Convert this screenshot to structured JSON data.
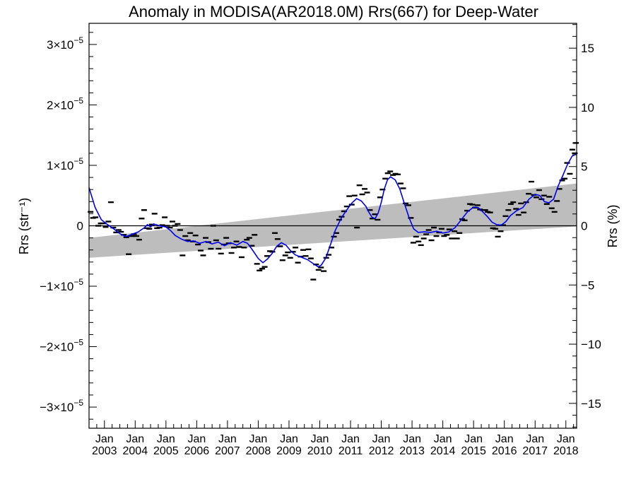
{
  "chart_data": {
    "type": "scatter",
    "title": "Anomaly in MODISA(AR2018.0M) Rrs(667) for Deep-Water",
    "ylabel_left": "Rrs (str⁻¹)",
    "ylabel_right": "Rrs (%)",
    "x_range": [
      2002.5,
      2018.35
    ],
    "y_range": [
      -3.35e-05,
      3.35e-05
    ],
    "y_right_range": [
      -17.1,
      17.1
    ],
    "y_left_ticks": [
      {
        "value": 3e-05,
        "mantissa": "3",
        "exp": "−5"
      },
      {
        "value": 2e-05,
        "mantissa": "2",
        "exp": "−5"
      },
      {
        "value": 1e-05,
        "mantissa": "1",
        "exp": "−5"
      },
      {
        "value": 0,
        "plain": "0"
      },
      {
        "value": -1e-05,
        "mantissa": "−1",
        "exp": "−5"
      },
      {
        "value": -2e-05,
        "mantissa": "−2",
        "exp": "−5"
      },
      {
        "value": -3e-05,
        "mantissa": "−3",
        "exp": "−5"
      }
    ],
    "y_right_ticks": [
      {
        "value": 15,
        "label": "15"
      },
      {
        "value": 10,
        "label": "10"
      },
      {
        "value": 5,
        "label": "5"
      },
      {
        "value": 0,
        "label": "0"
      },
      {
        "value": -5,
        "label": "−5"
      },
      {
        "value": -10,
        "label": "−10"
      },
      {
        "value": -15,
        "label": "−15"
      }
    ],
    "x_ticks": [
      {
        "value": 2003.0,
        "month": "Jan",
        "year": "2003"
      },
      {
        "value": 2004.0,
        "month": "Jan",
        "year": "2004"
      },
      {
        "value": 2005.0,
        "month": "Jan",
        "year": "2005"
      },
      {
        "value": 2006.0,
        "month": "Jan",
        "year": "2006"
      },
      {
        "value": 2007.0,
        "month": "Jan",
        "year": "2007"
      },
      {
        "value": 2008.0,
        "month": "Jan",
        "year": "2008"
      },
      {
        "value": 2009.0,
        "month": "Jan",
        "year": "2009"
      },
      {
        "value": 2010.0,
        "month": "Jan",
        "year": "2010"
      },
      {
        "value": 2011.0,
        "month": "Jan",
        "year": "2011"
      },
      {
        "value": 2012.0,
        "month": "Jan",
        "year": "2012"
      },
      {
        "value": 2013.0,
        "month": "Jan",
        "year": "2013"
      },
      {
        "value": 2014.0,
        "month": "Jan",
        "year": "2014"
      },
      {
        "value": 2015.0,
        "month": "Jan",
        "year": "2015"
      },
      {
        "value": 2016.0,
        "month": "Jan",
        "year": "2016"
      },
      {
        "value": 2017.0,
        "month": "Jan",
        "year": "2017"
      },
      {
        "value": 2018.0,
        "month": "Jan",
        "year": "2018"
      }
    ],
    "trend_band": {
      "start_x": 2002.5,
      "end_x": 2018.35,
      "upper_start": -2e-06,
      "upper_end": 7e-06,
      "lower_start": -5.3e-06,
      "lower_end": -1e-07
    },
    "zero_line": 0,
    "colors": {
      "smooth_line": "#0000ee",
      "band": "#bdbdbd",
      "points": "#000000",
      "axis": "#000000"
    },
    "smoothed": [
      [
        2002.5,
        6.3e-06
      ],
      [
        2002.7,
        3e-06
      ],
      [
        2002.9,
        1e-06
      ],
      [
        2003.1,
        2e-07
      ],
      [
        2003.3,
        -5e-07
      ],
      [
        2003.5,
        -1.3e-06
      ],
      [
        2003.7,
        -1.8e-06
      ],
      [
        2003.9,
        -1.4e-06
      ],
      [
        2004.1,
        -1e-06
      ],
      [
        2004.3,
        -3e-07
      ],
      [
        2004.4,
        2e-07
      ],
      [
        2004.5,
        -2e-07
      ],
      [
        2004.6,
        3e-07
      ],
      [
        2004.8,
        0.0
      ],
      [
        2005.0,
        -2e-07
      ],
      [
        2005.15,
        -8e-07
      ],
      [
        2005.3,
        -1.6e-06
      ],
      [
        2005.5,
        -2.2e-06
      ],
      [
        2005.7,
        -2.6e-06
      ],
      [
        2005.9,
        -2.5e-06
      ],
      [
        2006.1,
        -2.9e-06
      ],
      [
        2006.3,
        -2.6e-06
      ],
      [
        2006.5,
        -3e-06
      ],
      [
        2006.7,
        -2.7e-06
      ],
      [
        2006.9,
        -3.3e-06
      ],
      [
        2007.1,
        -2.8e-06
      ],
      [
        2007.3,
        -3.2e-06
      ],
      [
        2007.5,
        -2.6e-06
      ],
      [
        2007.65,
        -2.9e-06
      ],
      [
        2007.8,
        -3.9e-06
      ],
      [
        2008.0,
        -5.4e-06
      ],
      [
        2008.15,
        -6.1e-06
      ],
      [
        2008.3,
        -5.5e-06
      ],
      [
        2008.45,
        -4.6e-06
      ],
      [
        2008.6,
        -3.4e-06
      ],
      [
        2008.75,
        -2.8e-06
      ],
      [
        2008.9,
        -3.2e-06
      ],
      [
        2009.05,
        -4.1e-06
      ],
      [
        2009.2,
        -4.8e-06
      ],
      [
        2009.4,
        -5.2e-06
      ],
      [
        2009.6,
        -5.6e-06
      ],
      [
        2009.8,
        -6.3e-06
      ],
      [
        2009.95,
        -6.8e-06
      ],
      [
        2010.05,
        -6.5e-06
      ],
      [
        2010.2,
        -5.3e-06
      ],
      [
        2010.35,
        -3.1e-06
      ],
      [
        2010.5,
        -8e-07
      ],
      [
        2010.7,
        1.3e-06
      ],
      [
        2010.9,
        2.8e-06
      ],
      [
        2011.05,
        3.8e-06
      ],
      [
        2011.2,
        4.5e-06
      ],
      [
        2011.35,
        4.1e-06
      ],
      [
        2011.5,
        3.2e-06
      ],
      [
        2011.6,
        2.2e-06
      ],
      [
        2011.7,
        1.4e-06
      ],
      [
        2011.8,
        1.2e-06
      ],
      [
        2011.9,
        2.1e-06
      ],
      [
        2012.0,
        3.9e-06
      ],
      [
        2012.1,
        6.1e-06
      ],
      [
        2012.2,
        7.6e-06
      ],
      [
        2012.3,
        8.1e-06
      ],
      [
        2012.45,
        7.6e-06
      ],
      [
        2012.6,
        6.1e-06
      ],
      [
        2012.75,
        3.7e-06
      ],
      [
        2012.9,
        1.4e-06
      ],
      [
        2013.05,
        -5e-07
      ],
      [
        2013.2,
        -1.1e-06
      ],
      [
        2013.4,
        -1e-06
      ],
      [
        2013.6,
        -1.1e-06
      ],
      [
        2013.8,
        -9e-07
      ],
      [
        2014.0,
        -1.2e-06
      ],
      [
        2014.2,
        -1e-06
      ],
      [
        2014.4,
        -3e-07
      ],
      [
        2014.6,
        1e-06
      ],
      [
        2014.8,
        2.3e-06
      ],
      [
        2015.0,
        3.1e-06
      ],
      [
        2015.15,
        3e-06
      ],
      [
        2015.3,
        2.3e-06
      ],
      [
        2015.45,
        1.5e-06
      ],
      [
        2015.6,
        6e-07
      ],
      [
        2015.75,
        2e-07
      ],
      [
        2015.9,
        1e-07
      ],
      [
        2016.05,
        7e-07
      ],
      [
        2016.2,
        1.7e-06
      ],
      [
        2016.4,
        2.5e-06
      ],
      [
        2016.6,
        3e-06
      ],
      [
        2016.8,
        4.4e-06
      ],
      [
        2017.0,
        5.2e-06
      ],
      [
        2017.15,
        5e-06
      ],
      [
        2017.3,
        4e-06
      ],
      [
        2017.45,
        3.8e-06
      ],
      [
        2017.6,
        4.4e-06
      ],
      [
        2017.75,
        6.6e-06
      ],
      [
        2017.9,
        8.3e-06
      ],
      [
        2018.05,
        1.01e-05
      ],
      [
        2018.2,
        1.15e-05
      ],
      [
        2018.35,
        1.19e-05
      ]
    ],
    "monthly_points": [
      [
        2002.55,
        2.3e-06
      ],
      [
        2002.63,
        1.3e-06
      ],
      [
        2002.71,
        1.4e-06
      ],
      [
        2002.8,
        0.0
      ],
      [
        2002.88,
        4e-07
      ],
      [
        2002.96,
        4e-07
      ],
      [
        2003.04,
        -2e-07
      ],
      [
        2003.13,
        7e-07
      ],
      [
        2003.21,
        3.9e-06
      ],
      [
        2003.29,
        -3e-07
      ],
      [
        2003.38,
        -1.1e-06
      ],
      [
        2003.46,
        -7e-07
      ],
      [
        2003.54,
        -1e-06
      ],
      [
        2003.63,
        -1.5e-06
      ],
      [
        2003.71,
        -1.9e-06
      ],
      [
        2003.79,
        -4.7e-06
      ],
      [
        2003.88,
        -1.7e-06
      ],
      [
        2003.96,
        -1.4e-06
      ],
      [
        2004.04,
        -1.7e-06
      ],
      [
        2004.13,
        -2.3e-06
      ],
      [
        2004.21,
        1.2e-06
      ],
      [
        2004.29,
        2.6e-06
      ],
      [
        2004.38,
        -4e-07
      ],
      [
        2004.46,
        -5e-07
      ],
      [
        2004.54,
        2e-07
      ],
      [
        2004.63,
        2e-06
      ],
      [
        2004.71,
        -4e-07
      ],
      [
        2004.79,
        -3e-07
      ],
      [
        2004.88,
        1e-07
      ],
      [
        2004.96,
        1.4e-06
      ],
      [
        2005.04,
        0.0
      ],
      [
        2005.13,
        -3e-07
      ],
      [
        2005.21,
        7e-07
      ],
      [
        2005.29,
        0.0
      ],
      [
        2005.38,
        3e-07
      ],
      [
        2005.46,
        -7e-07
      ],
      [
        2005.54,
        -4.9e-06
      ],
      [
        2005.63,
        -1.7e-06
      ],
      [
        2005.71,
        -2.4e-06
      ],
      [
        2005.79,
        -1.2e-06
      ],
      [
        2005.88,
        -2.6e-06
      ],
      [
        2005.96,
        -1.6e-06
      ],
      [
        2006.04,
        -3.1e-06
      ],
      [
        2006.13,
        -4.1e-06
      ],
      [
        2006.21,
        -4.9e-06
      ],
      [
        2006.29,
        -2e-06
      ],
      [
        2006.38,
        -2.7e-06
      ],
      [
        2006.46,
        -3.8e-06
      ],
      [
        2006.54,
        0.0
      ],
      [
        2006.63,
        -2.4e-06
      ],
      [
        2006.71,
        -3.8e-06
      ],
      [
        2006.79,
        -4.6e-06
      ],
      [
        2006.88,
        -3.1e-06
      ],
      [
        2006.96,
        -2e-06
      ],
      [
        2007.04,
        -2.9e-06
      ],
      [
        2007.13,
        -4.5e-06
      ],
      [
        2007.21,
        -3.6e-06
      ],
      [
        2007.29,
        -2.6e-06
      ],
      [
        2007.38,
        -3.5e-06
      ],
      [
        2007.46,
        -5.2e-06
      ],
      [
        2007.54,
        -3.6e-06
      ],
      [
        2007.63,
        -2.3e-06
      ],
      [
        2007.71,
        -2e-06
      ],
      [
        2007.79,
        -3.3e-06
      ],
      [
        2007.88,
        -1.5e-06
      ],
      [
        2007.96,
        -6.3e-06
      ],
      [
        2008.04,
        -7.4e-06
      ],
      [
        2008.13,
        -7.1e-06
      ],
      [
        2008.21,
        -6.8e-06
      ],
      [
        2008.29,
        -5e-06
      ],
      [
        2008.38,
        -4.2e-06
      ],
      [
        2008.46,
        -4.3e-06
      ],
      [
        2008.54,
        -1.2e-06
      ],
      [
        2008.63,
        -2.2e-06
      ],
      [
        2008.71,
        -3.4e-06
      ],
      [
        2008.79,
        -5.7e-06
      ],
      [
        2008.88,
        -4.9e-06
      ],
      [
        2008.96,
        -4.4e-06
      ],
      [
        2009.04,
        -5.3e-06
      ],
      [
        2009.13,
        -4.3e-06
      ],
      [
        2009.21,
        -3.6e-06
      ],
      [
        2009.29,
        -6.1e-06
      ],
      [
        2009.38,
        -5.1e-06
      ],
      [
        2009.46,
        -4e-06
      ],
      [
        2009.54,
        -5e-06
      ],
      [
        2009.63,
        -3.9e-06
      ],
      [
        2009.71,
        -5.4e-06
      ],
      [
        2009.79,
        -8.9e-06
      ],
      [
        2009.88,
        -6.4e-06
      ],
      [
        2009.96,
        -7.3e-06
      ],
      [
        2010.04,
        -6.9e-06
      ],
      [
        2010.13,
        -7.5e-06
      ],
      [
        2010.21,
        -5.3e-06
      ],
      [
        2010.29,
        -4.8e-06
      ],
      [
        2010.38,
        -3.6e-06
      ],
      [
        2010.46,
        -1.8e-06
      ],
      [
        2010.54,
        -1.2e-06
      ],
      [
        2010.63,
        1e-06
      ],
      [
        2010.71,
        1.5e-06
      ],
      [
        2010.79,
        2.4e-06
      ],
      [
        2010.88,
        3.2e-06
      ],
      [
        2010.96,
        4.9e-06
      ],
      [
        2011.04,
        3.5e-06
      ],
      [
        2011.13,
        5e-06
      ],
      [
        2011.21,
        -3e-07
      ],
      [
        2011.29,
        6.7e-06
      ],
      [
        2011.38,
        5.2e-06
      ],
      [
        2011.46,
        6.1e-06
      ],
      [
        2011.54,
        5.5e-06
      ],
      [
        2011.63,
        2.6e-06
      ],
      [
        2011.71,
        1.2e-06
      ],
      [
        2011.79,
        1.9e-06
      ],
      [
        2011.88,
        1e-06
      ],
      [
        2011.96,
        4.7e-06
      ],
      [
        2012.04,
        6e-06
      ],
      [
        2012.13,
        7.8e-06
      ],
      [
        2012.21,
        8.7e-06
      ],
      [
        2012.29,
        9e-06
      ],
      [
        2012.38,
        8.4e-06
      ],
      [
        2012.46,
        8.6e-06
      ],
      [
        2012.54,
        8.5e-06
      ],
      [
        2012.63,
        7e-06
      ],
      [
        2012.71,
        6.2e-06
      ],
      [
        2012.79,
        3.7e-06
      ],
      [
        2012.88,
        3.4e-06
      ],
      [
        2012.96,
        1.3e-06
      ],
      [
        2013.04,
        -2.8e-06
      ],
      [
        2013.13,
        -1.8e-06
      ],
      [
        2013.21,
        -2.6e-06
      ],
      [
        2013.29,
        -3.2e-06
      ],
      [
        2013.38,
        -2.1e-06
      ],
      [
        2013.46,
        -1.4e-06
      ],
      [
        2013.54,
        -7e-07
      ],
      [
        2013.63,
        -2.4e-06
      ],
      [
        2013.71,
        -3e-07
      ],
      [
        2013.79,
        -1.7e-06
      ],
      [
        2013.88,
        -1.1e-06
      ],
      [
        2013.96,
        -5e-07
      ],
      [
        2014.04,
        -1.7e-06
      ],
      [
        2014.13,
        -1.5e-06
      ],
      [
        2014.21,
        -6e-07
      ],
      [
        2014.29,
        -2.1e-06
      ],
      [
        2014.38,
        -9e-07
      ],
      [
        2014.46,
        -2.1e-06
      ],
      [
        2014.54,
        -1.2e-06
      ],
      [
        2014.63,
        1.1e-06
      ],
      [
        2014.71,
        9e-07
      ],
      [
        2014.79,
        2.5e-06
      ],
      [
        2014.88,
        3.6e-06
      ],
      [
        2014.96,
        3.5e-06
      ],
      [
        2015.04,
        3e-06
      ],
      [
        2015.13,
        3.4e-06
      ],
      [
        2015.21,
        2.7e-06
      ],
      [
        2015.29,
        2.6e-06
      ],
      [
        2015.38,
        2.6e-06
      ],
      [
        2015.46,
        2.3e-06
      ],
      [
        2015.54,
        2.2e-06
      ],
      [
        2015.63,
        -4e-07
      ],
      [
        2015.71,
        -5e-07
      ],
      [
        2015.79,
        -1.8e-06
      ],
      [
        2015.88,
        -9e-07
      ],
      [
        2015.96,
        1e-07
      ],
      [
        2016.04,
        1.6e-06
      ],
      [
        2016.13,
        2.6e-06
      ],
      [
        2016.21,
        3.6e-06
      ],
      [
        2016.29,
        3.9e-06
      ],
      [
        2016.38,
        2.8e-06
      ],
      [
        2016.46,
        1.8e-06
      ],
      [
        2016.54,
        3.7e-06
      ],
      [
        2016.63,
        2.2e-06
      ],
      [
        2016.71,
        3.9e-06
      ],
      [
        2016.79,
        5.3e-06
      ],
      [
        2016.88,
        7.3e-06
      ],
      [
        2016.96,
        5.1e-06
      ],
      [
        2017.04,
        4.7e-06
      ],
      [
        2017.13,
        5.9e-06
      ],
      [
        2017.21,
        4.4e-06
      ],
      [
        2017.29,
        5e-06
      ],
      [
        2017.38,
        3.6e-06
      ],
      [
        2017.46,
        4.8e-06
      ],
      [
        2017.54,
        2.9e-06
      ],
      [
        2017.63,
        2.3e-06
      ],
      [
        2017.71,
        4.1e-06
      ],
      [
        2017.79,
        6.1e-06
      ],
      [
        2017.88,
        7.5e-06
      ],
      [
        2017.96,
        7.8e-06
      ],
      [
        2018.04,
        1.04e-05
      ],
      [
        2018.13,
        8.6e-06
      ],
      [
        2018.21,
        1.26e-05
      ],
      [
        2018.29,
        1.2e-05
      ],
      [
        2018.33,
        1.37e-05
      ]
    ]
  }
}
